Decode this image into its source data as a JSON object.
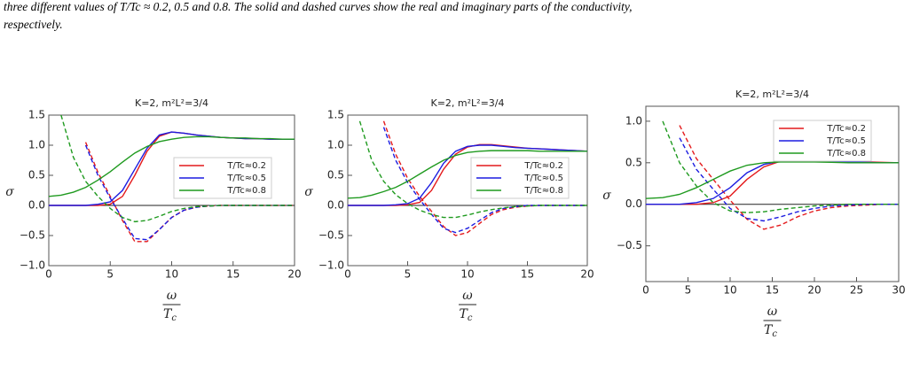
{
  "caption": [
    "three different values of T/Tc ≈ 0.2, 0.5 and 0.8. The solid and dashed curves show the real and imaginary parts of the conductivity,",
    "respectively."
  ],
  "chart_data": [
    {
      "type": "line",
      "title": "K=2, m²L²=3/4",
      "x_label": {
        "numerator": "ω",
        "denominator": "T",
        "subscript": "c"
      },
      "y_label": "σ",
      "x": [
        0,
        1,
        2,
        3,
        4,
        5,
        6,
        7,
        8,
        9,
        10,
        11,
        12,
        13,
        14,
        15,
        16,
        17,
        18,
        19,
        20
      ],
      "xlim": [
        0,
        20
      ],
      "xticks": [
        0,
        5,
        10,
        15,
        20
      ],
      "ylim": [
        -1,
        1.5
      ],
      "yticks": [
        {
          "value": -1,
          "label": "−1.0"
        },
        {
          "value": -0.5,
          "label": "−0.5"
        },
        {
          "value": 0,
          "label": "0.0"
        },
        {
          "value": 0.5,
          "label": "0.5"
        },
        {
          "value": 1,
          "label": "1.0"
        },
        {
          "value": 1.5,
          "label": "1.5"
        }
      ],
      "series": [
        {
          "name": "T/Tc≈0.2",
          "color": "#e41a1c",
          "real": [
            0,
            0,
            0,
            0,
            0,
            0.02,
            0.15,
            0.5,
            0.9,
            1.15,
            1.22,
            1.2,
            1.17,
            1.15,
            1.13,
            1.12,
            1.11,
            1.11,
            1.1,
            1.1,
            1.1
          ],
          "imag": [
            null,
            null,
            null,
            1.05,
            0.55,
            0.15,
            -0.25,
            -0.6,
            -0.6,
            -0.4,
            -0.2,
            -0.08,
            -0.03,
            -0.01,
            0,
            0,
            0,
            0,
            0,
            0,
            0
          ]
        },
        {
          "name": "T/Tc≈0.5",
          "color": "#1c1ce0",
          "real": [
            0,
            0,
            0,
            0,
            0.02,
            0.06,
            0.25,
            0.6,
            0.95,
            1.17,
            1.22,
            1.2,
            1.17,
            1.15,
            1.13,
            1.12,
            1.11,
            1.11,
            1.1,
            1.1,
            1.1
          ],
          "imag": [
            null,
            null,
            null,
            1.0,
            0.5,
            0.12,
            -0.22,
            -0.55,
            -0.57,
            -0.4,
            -0.2,
            -0.08,
            -0.03,
            -0.01,
            0,
            0,
            0,
            0,
            0,
            0,
            0
          ]
        },
        {
          "name": "T/Tc≈0.8",
          "color": "#1f9a1f",
          "real": [
            0.15,
            0.17,
            0.22,
            0.3,
            0.42,
            0.56,
            0.72,
            0.87,
            0.98,
            1.06,
            1.1,
            1.13,
            1.14,
            1.14,
            1.13,
            1.12,
            1.12,
            1.11,
            1.11,
            1.1,
            1.1
          ],
          "imag": [
            null,
            1.5,
            0.8,
            0.4,
            0.15,
            -0.05,
            -0.2,
            -0.27,
            -0.25,
            -0.18,
            -0.1,
            -0.05,
            -0.02,
            -0.01,
            0,
            0,
            0,
            0,
            0,
            0,
            0
          ]
        }
      ]
    },
    {
      "type": "line",
      "title": "K=2, m²L²=3/4",
      "x_label": {
        "numerator": "ω",
        "denominator": "T",
        "subscript": "c"
      },
      "y_label": "σ",
      "x": [
        0,
        1,
        2,
        3,
        4,
        5,
        6,
        7,
        8,
        9,
        10,
        11,
        12,
        13,
        14,
        15,
        16,
        17,
        18,
        19,
        20
      ],
      "xlim": [
        0,
        20
      ],
      "xticks": [
        0,
        5,
        10,
        15,
        20
      ],
      "ylim": [
        -1,
        1.5
      ],
      "yticks": [
        {
          "value": -1,
          "label": "−1.0"
        },
        {
          "value": -0.5,
          "label": "−0.5"
        },
        {
          "value": 0,
          "label": "0.0"
        },
        {
          "value": 0.5,
          "label": "0.5"
        },
        {
          "value": 1,
          "label": "1.0"
        },
        {
          "value": 1.5,
          "label": "1.5"
        }
      ],
      "series": [
        {
          "name": "T/Tc≈0.2",
          "color": "#e41a1c",
          "real": [
            0,
            0,
            0,
            0,
            0,
            0.01,
            0.05,
            0.25,
            0.6,
            0.85,
            0.97,
            1.01,
            1.01,
            0.99,
            0.97,
            0.95,
            0.94,
            0.93,
            0.92,
            0.91,
            0.9
          ],
          "imag": [
            null,
            null,
            null,
            1.4,
            0.85,
            0.45,
            0.15,
            -0.1,
            -0.35,
            -0.5,
            -0.45,
            -0.3,
            -0.15,
            -0.07,
            -0.03,
            -0.01,
            0,
            0,
            0,
            0,
            0
          ]
        },
        {
          "name": "T/Tc≈0.5",
          "color": "#1c1ce0",
          "real": [
            0,
            0,
            0,
            0,
            0.01,
            0.03,
            0.12,
            0.38,
            0.7,
            0.9,
            0.98,
            1.0,
            1.0,
            0.98,
            0.96,
            0.95,
            0.94,
            0.93,
            0.92,
            0.91,
            0.9
          ],
          "imag": [
            null,
            null,
            null,
            1.3,
            0.75,
            0.38,
            0.1,
            -0.15,
            -0.38,
            -0.45,
            -0.38,
            -0.25,
            -0.12,
            -0.05,
            -0.02,
            0,
            0,
            0,
            0,
            0,
            0
          ]
        },
        {
          "name": "T/Tc≈0.8",
          "color": "#1f9a1f",
          "real": [
            0.12,
            0.13,
            0.17,
            0.23,
            0.3,
            0.4,
            0.52,
            0.64,
            0.75,
            0.83,
            0.88,
            0.9,
            0.91,
            0.91,
            0.91,
            0.91,
            0.9,
            0.9,
            0.9,
            0.9,
            0.9
          ],
          "imag": [
            null,
            1.4,
            0.75,
            0.4,
            0.18,
            0.03,
            -0.08,
            -0.15,
            -0.2,
            -0.2,
            -0.16,
            -0.11,
            -0.07,
            -0.04,
            -0.02,
            -0.01,
            0,
            0,
            0,
            0,
            0
          ]
        }
      ]
    },
    {
      "type": "line",
      "title": "K=2, m²L²=3/4",
      "x_label": {
        "numerator": "ω",
        "denominator": "T",
        "subscript": "c"
      },
      "y_label": "σ",
      "x": [
        0,
        2,
        4,
        6,
        8,
        10,
        12,
        14,
        16,
        18,
        20,
        22,
        24,
        26,
        28,
        30
      ],
      "xlim": [
        0,
        30
      ],
      "xticks": [
        0,
        5,
        10,
        15,
        20,
        25,
        30
      ],
      "ylim": [
        -0.93,
        1.18
      ],
      "yticks": [
        {
          "value": -0.5,
          "label": "−0.5"
        },
        {
          "value": 0,
          "label": "0.0"
        },
        {
          "value": 0.5,
          "label": "0.5"
        },
        {
          "value": 1,
          "label": "1.0"
        }
      ],
      "series": [
        {
          "name": "T/Tc≈0.2",
          "color": "#e41a1c",
          "real": [
            0,
            0,
            0,
            0,
            0.02,
            0.1,
            0.3,
            0.45,
            0.52,
            0.54,
            0.53,
            0.52,
            0.515,
            0.51,
            0.505,
            0.5
          ],
          "imag": [
            null,
            null,
            0.95,
            0.55,
            0.3,
            0.05,
            -0.18,
            -0.3,
            -0.25,
            -0.15,
            -0.08,
            -0.04,
            -0.02,
            -0.01,
            0,
            0
          ]
        },
        {
          "name": "T/Tc≈0.5",
          "color": "#1c1ce0",
          "real": [
            0,
            0,
            0,
            0.02,
            0.07,
            0.2,
            0.38,
            0.48,
            0.52,
            0.52,
            0.52,
            0.51,
            0.51,
            0.505,
            0.5,
            0.5
          ],
          "imag": [
            null,
            null,
            0.8,
            0.42,
            0.18,
            -0.05,
            -0.17,
            -0.2,
            -0.15,
            -0.09,
            -0.05,
            -0.02,
            -0.01,
            0,
            0,
            0
          ]
        },
        {
          "name": "T/Tc≈0.8",
          "color": "#1f9a1f",
          "real": [
            0.07,
            0.08,
            0.12,
            0.2,
            0.3,
            0.4,
            0.47,
            0.5,
            0.51,
            0.51,
            0.51,
            0.505,
            0.5,
            0.5,
            0.5,
            0.5
          ],
          "imag": [
            null,
            1.0,
            0.5,
            0.22,
            0.02,
            -0.08,
            -0.1,
            -0.09,
            -0.06,
            -0.04,
            -0.02,
            -0.01,
            0,
            0,
            0,
            0
          ]
        }
      ]
    }
  ]
}
